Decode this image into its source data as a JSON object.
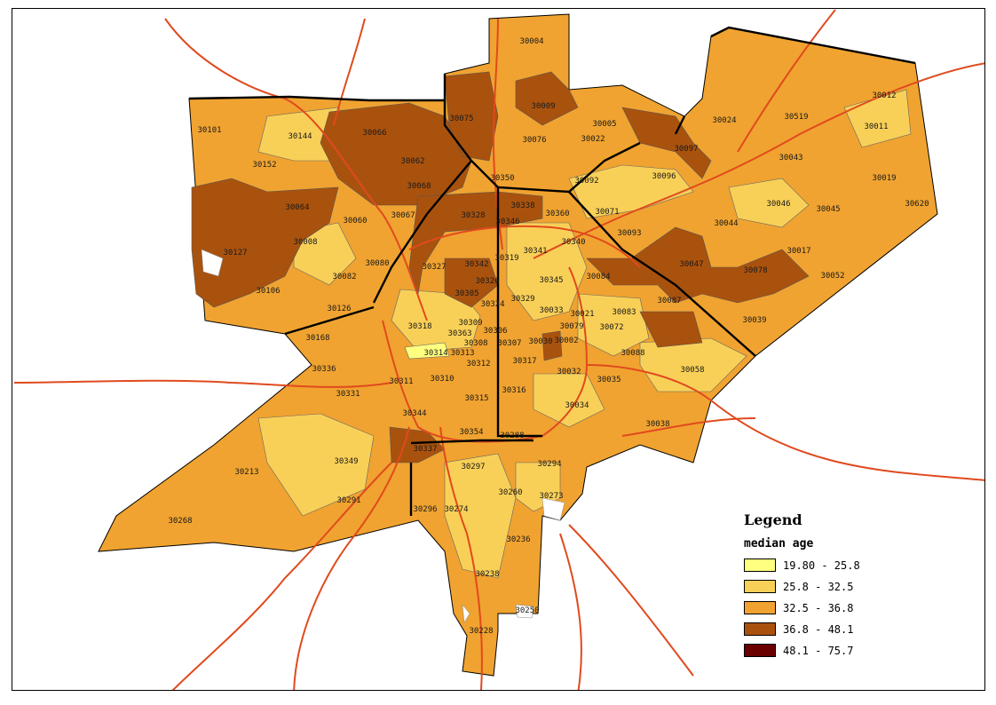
{
  "legend": {
    "title": "Legend",
    "subtitle": "median age",
    "classes": [
      {
        "label": "19.80 - 25.8",
        "color": "#FFFF80"
      },
      {
        "label": "25.8 - 32.5",
        "color": "#F9D057"
      },
      {
        "label": "32.5 - 36.8",
        "color": "#F0A330"
      },
      {
        "label": "36.8 - 48.1",
        "color": "#A9520E"
      },
      {
        "label": "48.1 - 75.7",
        "color": "#6B0000"
      }
    ]
  },
  "colors": {
    "road": "#E04A1E",
    "county_border": "#000000",
    "zip_border": "#555555"
  },
  "zip_codes": [
    "30004",
    "30009",
    "30005",
    "30075",
    "30076",
    "30022",
    "30097",
    "30024",
    "30019",
    "30043",
    "30011",
    "30519",
    "30101",
    "30144",
    "30066",
    "30062",
    "30068",
    "30152",
    "30064",
    "30060",
    "30067",
    "30008",
    "30127",
    "30106",
    "30082",
    "30080",
    "30126",
    "30168",
    "30350",
    "30092",
    "30096",
    "30071",
    "30093",
    "30044",
    "30046",
    "30045",
    "30017",
    "30047",
    "30078",
    "30052",
    "30039",
    "30328",
    "30338",
    "30346",
    "30360",
    "30340",
    "30341",
    "30319",
    "30342",
    "30327",
    "30326",
    "30305",
    "30324",
    "30345",
    "30084",
    "30087",
    "30329",
    "30033",
    "30021",
    "30083",
    "30072",
    "30079",
    "30002",
    "30030",
    "30318",
    "30309",
    "30363",
    "30306",
    "30308",
    "30307",
    "30314",
    "30313",
    "30312",
    "30317",
    "30032",
    "30035",
    "30088",
    "30058",
    "30311",
    "30310",
    "30316",
    "30034",
    "30336",
    "30331",
    "30344",
    "30315",
    "30354",
    "30288",
    "30038",
    "30337",
    "30297",
    "30294",
    "30260",
    "30213",
    "30349",
    "30291",
    "30296",
    "30274",
    "30236",
    "30238",
    "30268",
    "30228",
    "30273",
    "30250",
    "30620",
    "30012"
  ]
}
